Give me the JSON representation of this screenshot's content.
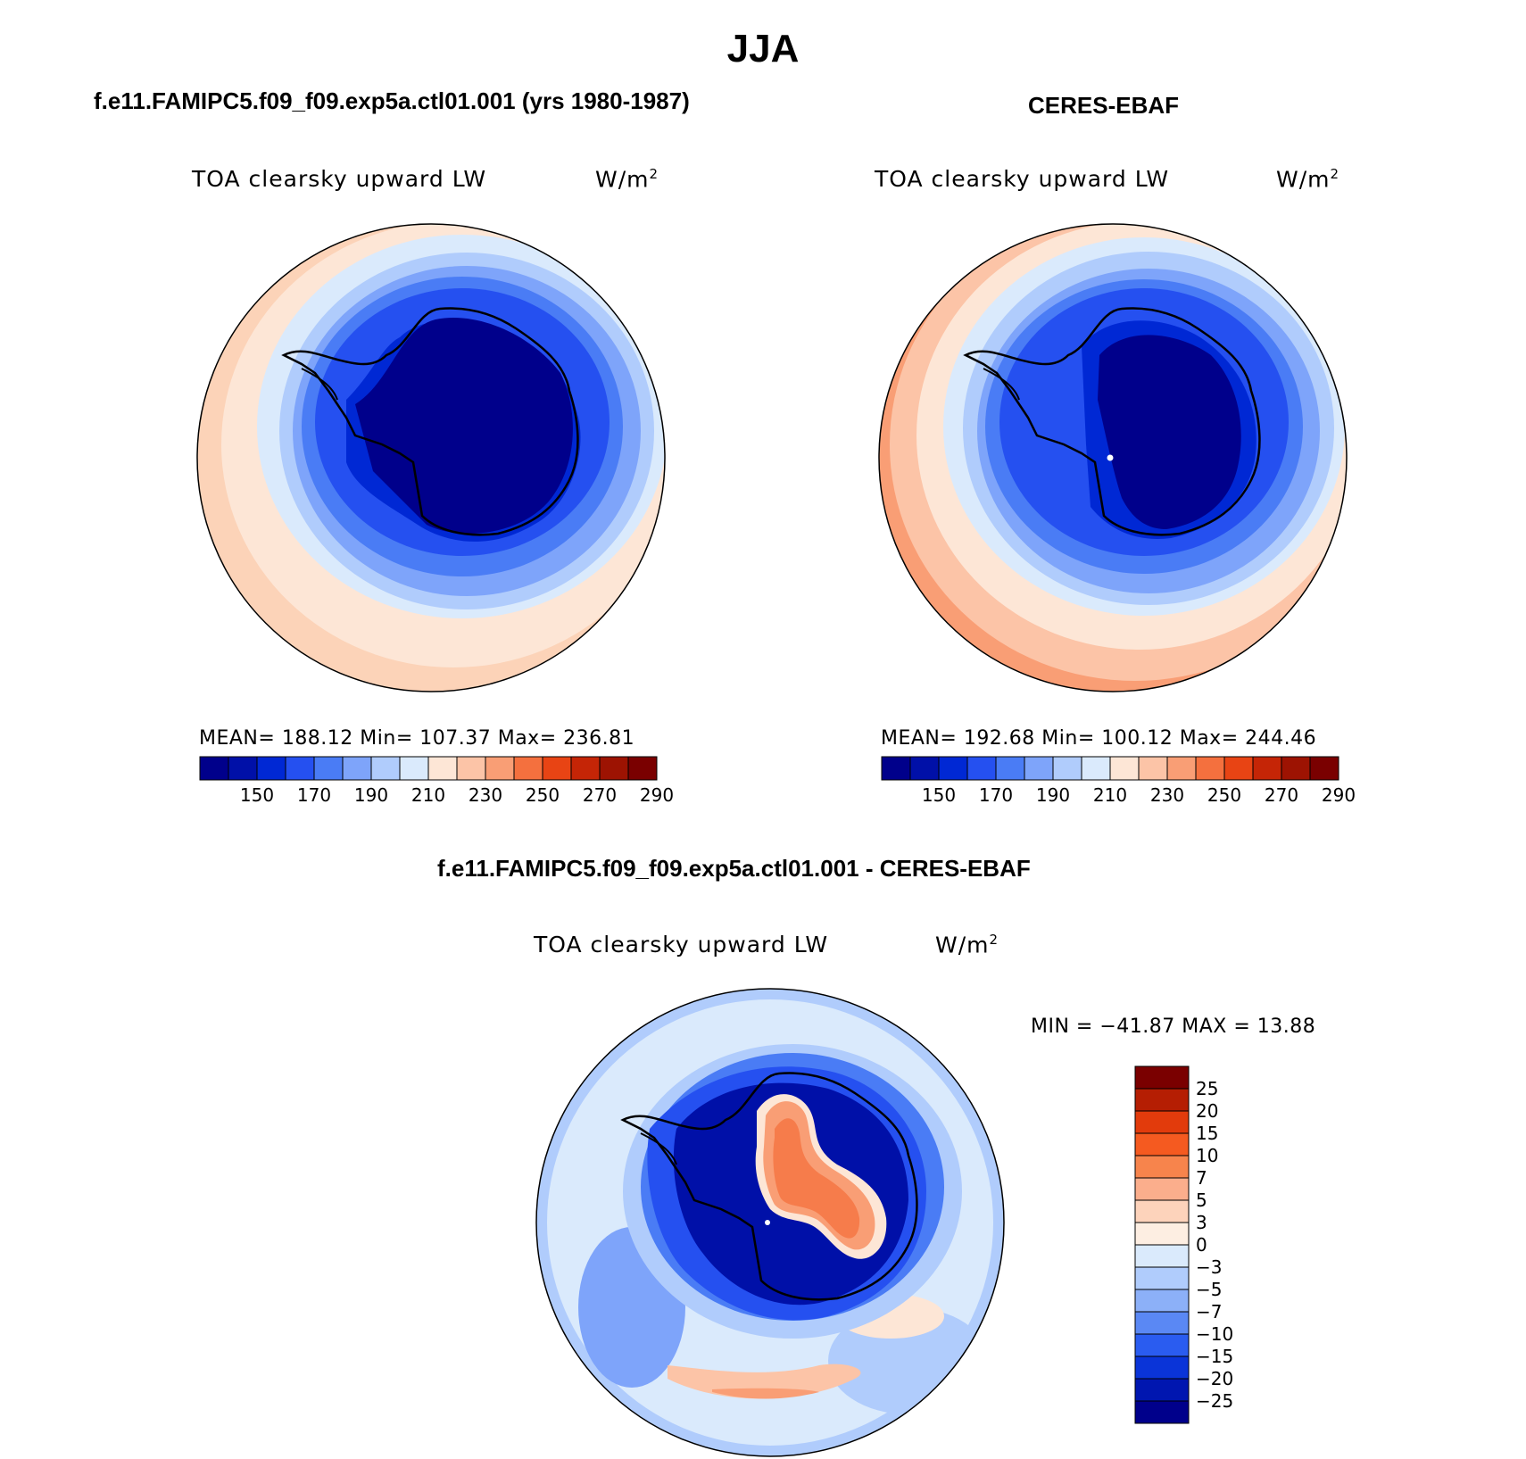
{
  "title": "JJA",
  "panels": [
    {
      "case_title": "f.e11.FAMIPC5.f09_f09.exp5a.ctl01.001 (yrs 1980-1987)",
      "variable": "TOA clearsky upward LW",
      "units_base": "W/m",
      "units_exp": "2",
      "stats": "MEAN= 188.12   Min= 107.37   Max= 236.81"
    },
    {
      "case_title": "CERES-EBAF",
      "variable": "TOA clearsky upward LW",
      "units_base": "W/m",
      "units_exp": "2",
      "stats": "MEAN= 192.68   Min= 100.12   Max= 244.46"
    }
  ],
  "colorbar_abs": {
    "colors": [
      "#00008b",
      "#0010a8",
      "#0028d4",
      "#2550f0",
      "#4a7cf5",
      "#7ea4fa",
      "#b0ccfc",
      "#daeafc",
      "#fde6d6",
      "#fcc4a7",
      "#f99e75",
      "#f4703e",
      "#e84414",
      "#c52506",
      "#9d1302",
      "#7a0000"
    ],
    "labels": [
      "150",
      "170",
      "190",
      "210",
      "230",
      "250",
      "270",
      "290"
    ]
  },
  "diff_panel": {
    "case_title": "f.e11.FAMIPC5.f09_f09.exp5a.ctl01.001 - CERES-EBAF",
    "variable": "TOA clearsky upward LW",
    "units_base": "W/m",
    "units_exp": "2",
    "stats": "MIN = −41.87 MAX =   13.88"
  },
  "colorbar_diff": {
    "colors_top_to_bottom": [
      "#7a0000",
      "#b51e03",
      "#e23b0c",
      "#f55a20",
      "#f7844c",
      "#fbae8c",
      "#fdd3bb",
      "#fdeee2",
      "#daeafc",
      "#b0ccfc",
      "#8cb0f8",
      "#5a88f4",
      "#2a5cf0",
      "#0a34d8",
      "#0016b0",
      "#00008b"
    ],
    "labels_top_to_bottom": [
      "25",
      "20",
      "15",
      "10",
      "7",
      "5",
      "3",
      "0",
      "−3",
      "−5",
      "−7",
      "−10",
      "−15",
      "−20",
      "−25"
    ]
  },
  "map_colors": {
    "ocean_far": "#fcd3b8",
    "ocean_mid": "#fde6d6",
    "ring_light": "#daeafc",
    "ring_b": "#b0ccfc",
    "ring_c": "#7ea4fa",
    "ring_d": "#4a7cf5",
    "ring_e": "#2550f0",
    "ring_f": "#0028d4",
    "ring_g": "#0010a8",
    "core": "#00008b",
    "coast": "#000000"
  }
}
